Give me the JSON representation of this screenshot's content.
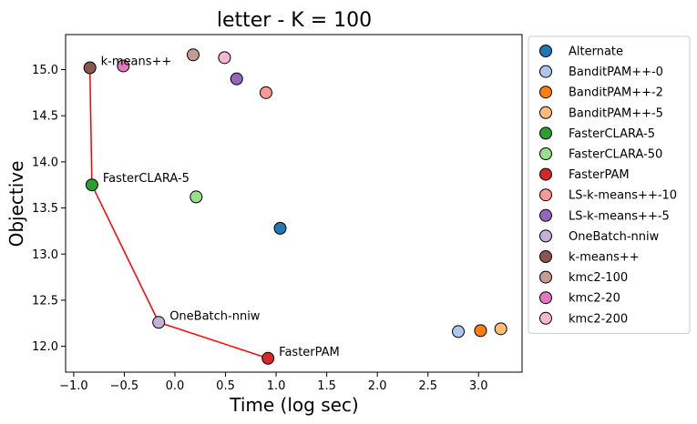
{
  "chart_data": {
    "type": "scatter",
    "title": "letter - K = 100",
    "xlabel": "Time (log sec)",
    "ylabel": "Objective",
    "xlim": [
      -1.08,
      3.43
    ],
    "ylim": [
      11.72,
      15.38
    ],
    "xticks": [
      -1.0,
      -0.5,
      0.0,
      0.5,
      1.0,
      1.5,
      2.0,
      2.5,
      3.0
    ],
    "xtick_labels": [
      "−1.0",
      "−0.5",
      "0.0",
      "0.5",
      "1.0",
      "1.5",
      "2.0",
      "2.5",
      "3.0"
    ],
    "yticks": [
      12.0,
      12.5,
      13.0,
      13.5,
      14.0,
      14.5,
      15.0
    ],
    "ytick_labels": [
      "12.0",
      "12.5",
      "13.0",
      "13.5",
      "14.0",
      "14.5",
      "15.0"
    ],
    "grid": false,
    "legend_position": "outside right",
    "series": [
      {
        "name": "Alternate",
        "color": "#1f77b4",
        "points": [
          [
            1.04,
            13.28
          ]
        ]
      },
      {
        "name": "BanditPAM++-0",
        "color": "#aec7e8",
        "points": [
          [
            2.8,
            12.16
          ]
        ]
      },
      {
        "name": "BanditPAM++-2",
        "color": "#ff7f0e",
        "points": [
          [
            3.02,
            12.17
          ]
        ]
      },
      {
        "name": "BanditPAM++-5",
        "color": "#ffbb78",
        "points": [
          [
            3.22,
            12.19
          ]
        ]
      },
      {
        "name": "FasterCLARA-5",
        "color": "#2ca02c",
        "points": [
          [
            -0.82,
            13.75
          ]
        ]
      },
      {
        "name": "FasterCLARA-50",
        "color": "#98df8a",
        "points": [
          [
            0.21,
            13.62
          ]
        ]
      },
      {
        "name": "FasterPAM",
        "color": "#d62728",
        "points": [
          [
            0.92,
            11.87
          ]
        ]
      },
      {
        "name": "LS-k-means++-10",
        "color": "#ff9896",
        "points": [
          [
            0.9,
            14.75
          ]
        ]
      },
      {
        "name": "LS-k-means++-5",
        "color": "#9467bd",
        "points": [
          [
            0.61,
            14.9
          ]
        ]
      },
      {
        "name": "OneBatch-nniw",
        "color": "#c5b0d5",
        "points": [
          [
            -0.16,
            12.26
          ]
        ]
      },
      {
        "name": "k-means++",
        "color": "#8c564b",
        "points": [
          [
            -0.84,
            15.02
          ]
        ]
      },
      {
        "name": "kmc2-100",
        "color": "#c49c94",
        "points": [
          [
            0.18,
            15.16
          ]
        ]
      },
      {
        "name": "kmc2-20",
        "color": "#e377c2",
        "points": [
          [
            -0.51,
            15.04
          ]
        ]
      },
      {
        "name": "kmc2-200",
        "color": "#f7b6d2",
        "points": [
          [
            0.49,
            15.13
          ]
        ]
      }
    ],
    "pareto_front": {
      "color": "#ff0000",
      "points": [
        [
          -0.84,
          15.02
        ],
        [
          -0.82,
          13.75
        ],
        [
          -0.16,
          12.26
        ],
        [
          0.92,
          11.87
        ]
      ]
    },
    "annotations": [
      {
        "text": "k-means++",
        "x": -0.84,
        "y": 15.02
      },
      {
        "text": "FasterCLARA-5",
        "x": -0.82,
        "y": 13.75
      },
      {
        "text": "OneBatch-nniw",
        "x": -0.16,
        "y": 12.26
      },
      {
        "text": "FasterPAM",
        "x": 0.92,
        "y": 11.87
      }
    ]
  }
}
